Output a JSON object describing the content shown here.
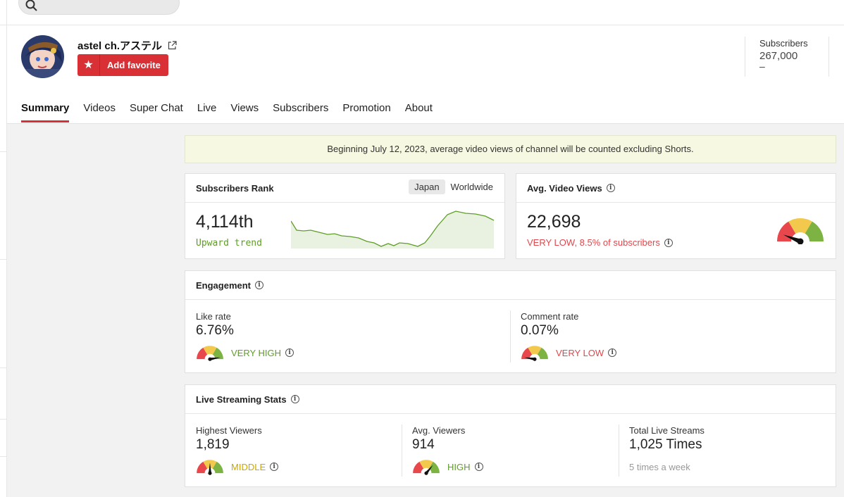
{
  "search": {
    "icon": "search-icon"
  },
  "channel": {
    "name": "astel ch.アステル",
    "favorite_label": "Add favorite"
  },
  "subscribers_box": {
    "title": "Subscribers",
    "value": "267,000",
    "dash": "–"
  },
  "tabs": [
    "Summary",
    "Videos",
    "Super Chat",
    "Live",
    "Views",
    "Subscribers",
    "Promotion",
    "About"
  ],
  "notice": "Beginning July 12, 2023, average video views of channel will be counted excluding Shorts.",
  "rank": {
    "title": "Subscribers Rank",
    "toggle": [
      "Japan",
      "Worldwide"
    ],
    "value": "4,114th",
    "trend": "Upward trend"
  },
  "avg_views": {
    "title": "Avg. Video Views",
    "value": "22,698",
    "status": "VERY LOW, 8.5% of subscribers",
    "level": 0.12
  },
  "engagement": {
    "title": "Engagement",
    "like": {
      "label": "Like rate",
      "value": "6.76%",
      "status": "VERY HIGH",
      "level": 0.95
    },
    "comment": {
      "label": "Comment rate",
      "value": "0.07%",
      "status": "VERY LOW",
      "level": 0.05
    }
  },
  "live": {
    "title": "Live Streaming Stats",
    "highest": {
      "label": "Highest Viewers",
      "value": "1,819",
      "status": "MIDDLE",
      "level": 0.5
    },
    "avg": {
      "label": "Avg. Viewers",
      "value": "914",
      "status": "HIGH",
      "level": 0.72
    },
    "total": {
      "label": "Total Live Streams",
      "value": "1,025 Times",
      "sub": "5 times a week"
    }
  },
  "colors": {
    "red": "#d93036",
    "green": "#5f9e26",
    "yellow": "#c9a800",
    "low_red": "#e0474c"
  }
}
